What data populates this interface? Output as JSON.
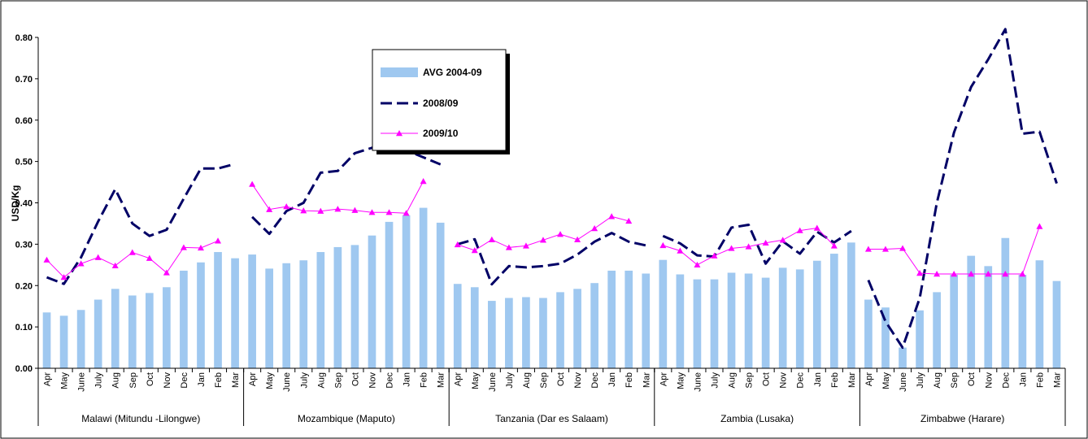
{
  "chart_data": {
    "type": "bar",
    "title": "",
    "xlabel": "",
    "ylabel": "USD/Kg",
    "ylim": [
      0,
      0.8
    ],
    "yticks": [
      "0.00",
      "0.10",
      "0.20",
      "0.30",
      "0.40",
      "0.50",
      "0.60",
      "0.70",
      "0.80"
    ],
    "grid": false,
    "legend_position": "top-center",
    "months": [
      "Apr",
      "May",
      "June",
      "July",
      "Aug",
      "Sep",
      "Oct",
      "Nov",
      "Dec",
      "Jan",
      "Feb",
      "Mar"
    ],
    "groups": [
      "Malawi (Mitundu -Lilongwe)",
      "Mozambique (Maputo)",
      "Tanzania (Dar es Salaam)",
      "Zambia (Lusaka)",
      "Zimbabwe (Harare)"
    ],
    "series": [
      {
        "name": "AVG 2004-09",
        "type": "bar",
        "color": "#9fc8f0",
        "values": [
          [
            0.135,
            0.127,
            0.141,
            0.166,
            0.192,
            0.176,
            0.182,
            0.196,
            0.236,
            0.256,
            0.281,
            0.266
          ],
          [
            0.275,
            0.241,
            0.254,
            0.261,
            0.281,
            0.293,
            0.298,
            0.321,
            0.354,
            0.37,
            0.388,
            0.352
          ],
          [
            0.204,
            0.196,
            0.163,
            0.17,
            0.172,
            0.17,
            0.184,
            0.192,
            0.206,
            0.236,
            0.236,
            0.229
          ],
          [
            0.262,
            0.227,
            0.215,
            0.215,
            0.231,
            0.229,
            0.219,
            0.243,
            0.239,
            0.26,
            0.277,
            0.304
          ],
          [
            0.166,
            0.147,
            0.05,
            0.14,
            0.184,
            0.226,
            0.272,
            0.247,
            0.315,
            0.226,
            0.261,
            0.211
          ]
        ]
      },
      {
        "name": "2008/09",
        "type": "line",
        "style": "dashed",
        "color": "#000066",
        "values": [
          [
            0.22,
            0.204,
            0.268,
            0.355,
            0.433,
            0.35,
            0.32,
            0.335,
            0.41,
            0.483,
            0.483,
            0.494
          ],
          [
            0.366,
            0.325,
            0.38,
            0.4,
            0.473,
            0.477,
            0.52,
            0.533,
            0.52,
            0.527,
            0.51,
            0.493
          ],
          [
            0.3,
            0.312,
            0.203,
            0.247,
            0.244,
            0.247,
            0.253,
            0.275,
            0.306,
            0.327,
            0.306,
            0.297
          ],
          [
            0.32,
            0.302,
            0.273,
            0.27,
            0.34,
            0.347,
            0.253,
            0.307,
            0.277,
            0.33,
            0.304,
            0.332
          ],
          [
            0.213,
            0.113,
            0.05,
            0.17,
            0.4,
            0.57,
            0.68,
            0.747,
            0.82,
            0.567,
            0.572,
            0.447
          ]
        ]
      },
      {
        "name": "2009/10",
        "type": "line",
        "style": "solid-triangle",
        "color": "#ff00ff",
        "values": [
          [
            0.262,
            0.22,
            0.253,
            0.268,
            0.248,
            0.28,
            0.266,
            0.231,
            0.292,
            0.291,
            0.308,
            null
          ],
          [
            0.445,
            0.384,
            0.391,
            0.381,
            0.38,
            0.385,
            0.382,
            0.377,
            0.377,
            0.375,
            0.452,
            null
          ],
          [
            0.299,
            0.285,
            0.311,
            0.292,
            0.296,
            0.31,
            0.324,
            0.311,
            0.338,
            0.367,
            0.356,
            null
          ],
          [
            0.297,
            0.284,
            0.25,
            0.272,
            0.29,
            0.294,
            0.303,
            0.31,
            0.333,
            0.339,
            0.296,
            null
          ],
          [
            0.288,
            0.288,
            0.29,
            0.23,
            0.228,
            0.228,
            0.228,
            0.228,
            0.228,
            0.228,
            0.343,
            null
          ]
        ]
      }
    ]
  }
}
